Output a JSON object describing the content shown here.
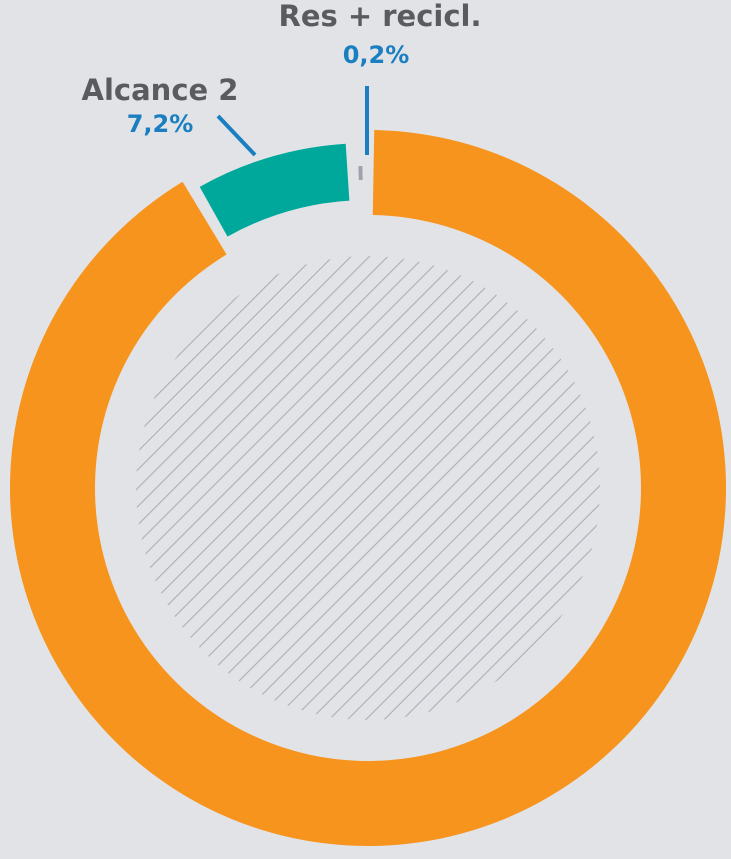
{
  "chart_data": {
    "type": "donut",
    "categories": [
      null,
      "Alcance 2",
      "Res + recicl."
    ],
    "values": [
      92.6,
      7.2,
      0.2
    ],
    "value_labels": [
      null,
      "7,2%",
      "0,2%"
    ],
    "colors": [
      "#f7941d",
      "#00a89c",
      "#9ea3ab"
    ]
  }
}
